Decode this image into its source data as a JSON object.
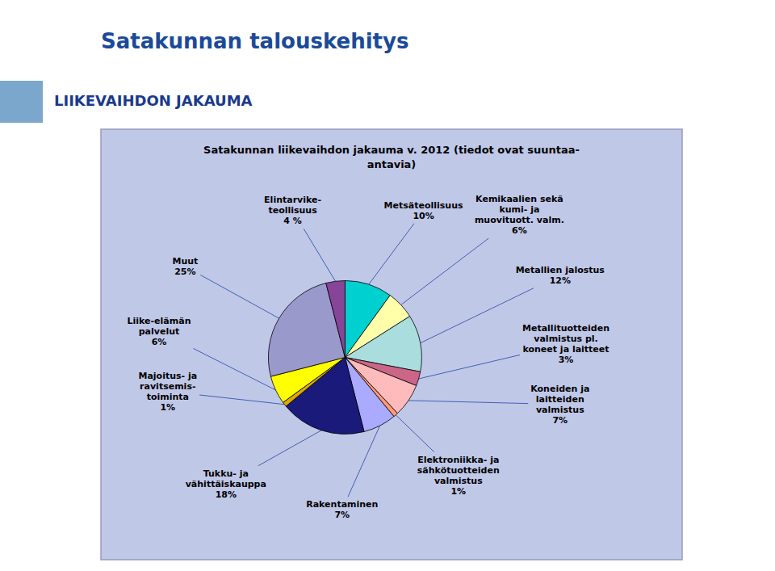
{
  "chart_data": {
    "type": "pie",
    "title": "Satakunnan talouskehitys",
    "subtitle": "LIIKEVAIHDON JAKAUMA",
    "annotations": [
      "Satakunnan liikevaihdon jakauma v. 2012 (tiedot ovat suuntaa-\nantavia)"
    ],
    "categories": [
      "Metsäteollisuus",
      "Kemikaalien sekä\nkumi- ja\nmuovituott. valm.",
      "Metallien jalostus",
      "Metallituotteiden\nvalmistus pl.\nkoneet ja laitteet",
      "Koneiden ja\nlaitteiden\nvalmistus",
      "Elektroniikka- ja\nsähkötuotteiden\nvalmistus",
      "Rakentaminen",
      "Tukku- ja\nvähittäiskauppa",
      "Majoitus- ja\nravitsemis-\ntoiminta",
      "Liike-elämän\npalvelut",
      "Muut",
      "Elintarvike-\nteollisuus"
    ],
    "values": [
      10,
      6,
      12,
      3,
      7,
      1,
      7,
      18,
      1,
      6,
      25,
      4
    ],
    "value_labels": [
      "10%",
      "6%",
      "12%",
      "3%",
      "7%",
      "1%",
      "7%",
      "18%",
      "1%",
      "6%",
      "25%",
      "4 %"
    ],
    "colors": [
      "#00D0D0",
      "#FFFFAA",
      "#AADDDD",
      "#CC6688",
      "#FFBBBB",
      "#FF9977",
      "#AAAAFF",
      "#1A1A7A",
      "#DDAA00",
      "#FFFF00",
      "#9999CC",
      "#884499"
    ],
    "data_labels": true
  }
}
